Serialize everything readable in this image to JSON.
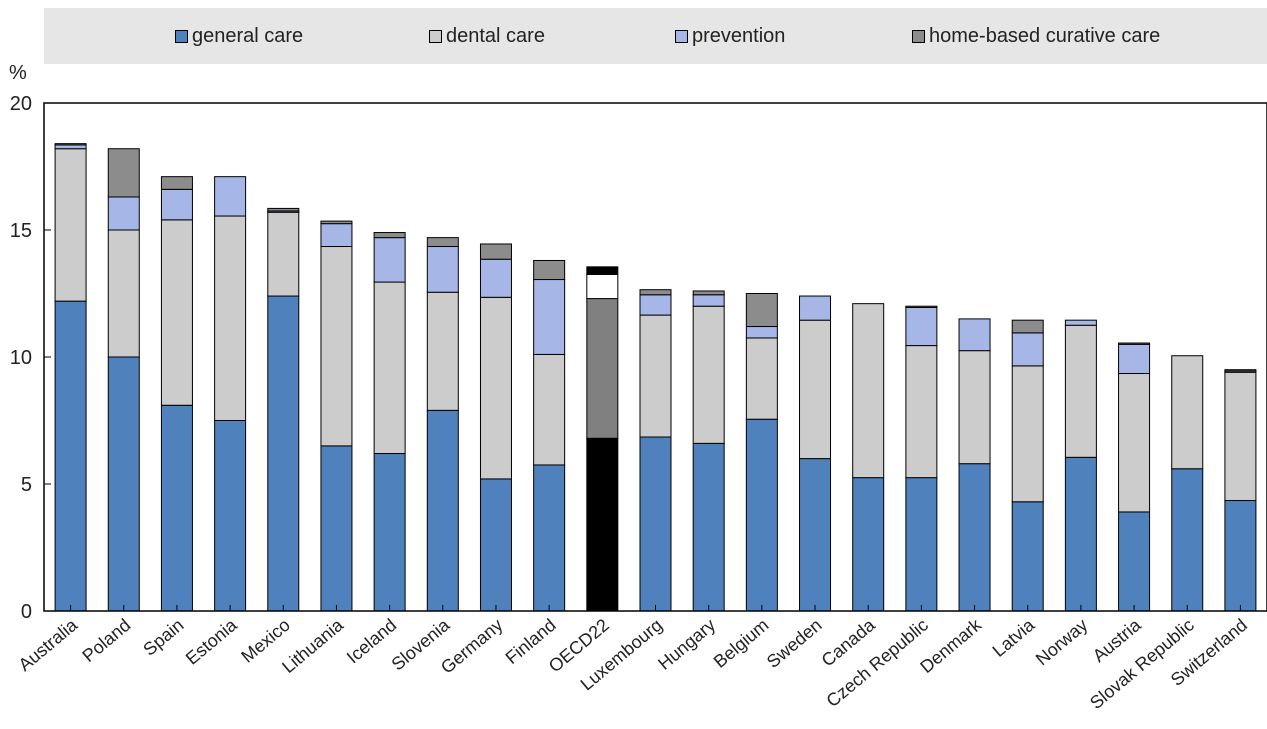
{
  "chart_data": {
    "type": "bar",
    "stacked": true,
    "ylabel": "%",
    "ylim": [
      0,
      20
    ],
    "yticks": [
      0,
      5,
      10,
      15,
      20
    ],
    "grid": false,
    "legend_position": "top",
    "categories": [
      "Australia",
      "Poland",
      "Spain",
      "Estonia",
      "Mexico",
      "Lithuania",
      "Iceland",
      "Slovenia",
      "Germany",
      "Finland",
      "OECD22",
      "Luxembourg",
      "Hungary",
      "Belgium",
      "Sweden",
      "Canada",
      "Czech Republic",
      "Denmark",
      "Latvia",
      "Norway",
      "Austria",
      "Slovak Republic",
      "Switzerland"
    ],
    "highlight_category": "OECD22",
    "series": [
      {
        "name": "general care",
        "color": "#4f81bd",
        "highlight_color": "#000000",
        "values": [
          12.2,
          10.0,
          8.1,
          7.5,
          12.4,
          6.5,
          6.2,
          7.9,
          5.2,
          5.75,
          6.8,
          6.85,
          6.6,
          7.55,
          6.0,
          5.25,
          5.25,
          5.8,
          4.3,
          6.05,
          3.9,
          5.6,
          4.35
        ]
      },
      {
        "name": "dental care",
        "color": "#cccccc",
        "highlight_color": "#808080",
        "values": [
          6.0,
          5.0,
          7.3,
          8.05,
          3.3,
          7.85,
          6.75,
          4.65,
          7.15,
          4.35,
          5.5,
          4.8,
          5.4,
          3.2,
          5.45,
          6.85,
          5.2,
          4.45,
          5.35,
          5.2,
          5.45,
          4.45,
          5.05
        ]
      },
      {
        "name": "prevention",
        "color": "#a6b6e6",
        "highlight_color": "#ffffff",
        "values": [
          0.15,
          1.3,
          1.2,
          1.55,
          0.05,
          0.9,
          1.75,
          1.8,
          1.5,
          2.95,
          0.95,
          0.8,
          0.45,
          0.45,
          0.95,
          0.0,
          1.5,
          1.25,
          1.3,
          0.2,
          1.15,
          0.0,
          0.05
        ]
      },
      {
        "name": "home-based curative care",
        "color": "#8c8c8c",
        "highlight_color": "#000000",
        "values": [
          0.05,
          1.9,
          0.5,
          0.0,
          0.1,
          0.1,
          0.2,
          0.35,
          0.6,
          0.75,
          0.3,
          0.2,
          0.15,
          1.3,
          0.0,
          0.0,
          0.05,
          0.0,
          0.5,
          0.0,
          0.05,
          0.0,
          0.05
        ]
      }
    ]
  }
}
